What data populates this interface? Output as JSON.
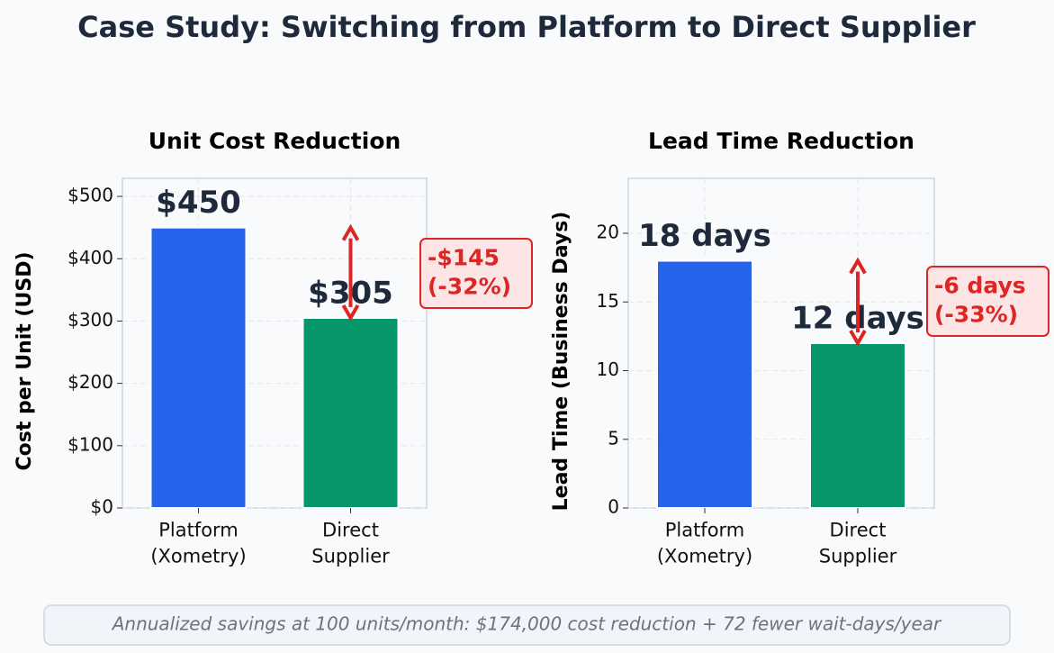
{
  "title": "Case Study: Switching from Platform to Direct Supplier",
  "footer": "Annualized savings at 100 units/month: $174,000 cost reduction + 72 fewer wait-days/year",
  "chart_data": [
    {
      "type": "bar",
      "title": "Unit Cost Reduction",
      "y_label": "Cost per Unit (USD)",
      "categories": [
        "Platform\n(Xometry)",
        "Direct\nSupplier"
      ],
      "values": [
        450,
        305
      ],
      "value_labels": [
        "$450",
        "$305"
      ],
      "colors": [
        "#2563eb",
        "#059669"
      ],
      "ylim": [
        0,
        529
      ],
      "yticks": [
        {
          "value": 0,
          "label": "$0"
        },
        {
          "value": 100,
          "label": "$100"
        },
        {
          "value": 200,
          "label": "$200"
        },
        {
          "value": 300,
          "label": "$300"
        },
        {
          "value": 400,
          "label": "$400"
        },
        {
          "value": 500,
          "label": "$500"
        }
      ],
      "grid": true,
      "annotation": "-$145\n(-32%)"
    },
    {
      "type": "bar",
      "title": "Lead Time Reduction",
      "y_label": "Lead Time (Business Days)",
      "categories": [
        "Platform\n(Xometry)",
        "Direct\nSupplier"
      ],
      "values": [
        18,
        12
      ],
      "value_labels": [
        "18 days",
        "12 days"
      ],
      "colors": [
        "#2563eb",
        "#059669"
      ],
      "ylim": [
        0,
        24
      ],
      "yticks": [
        0,
        5,
        10,
        15,
        20
      ],
      "grid": true,
      "annotation": "-6 days\n(-33%)"
    }
  ]
}
